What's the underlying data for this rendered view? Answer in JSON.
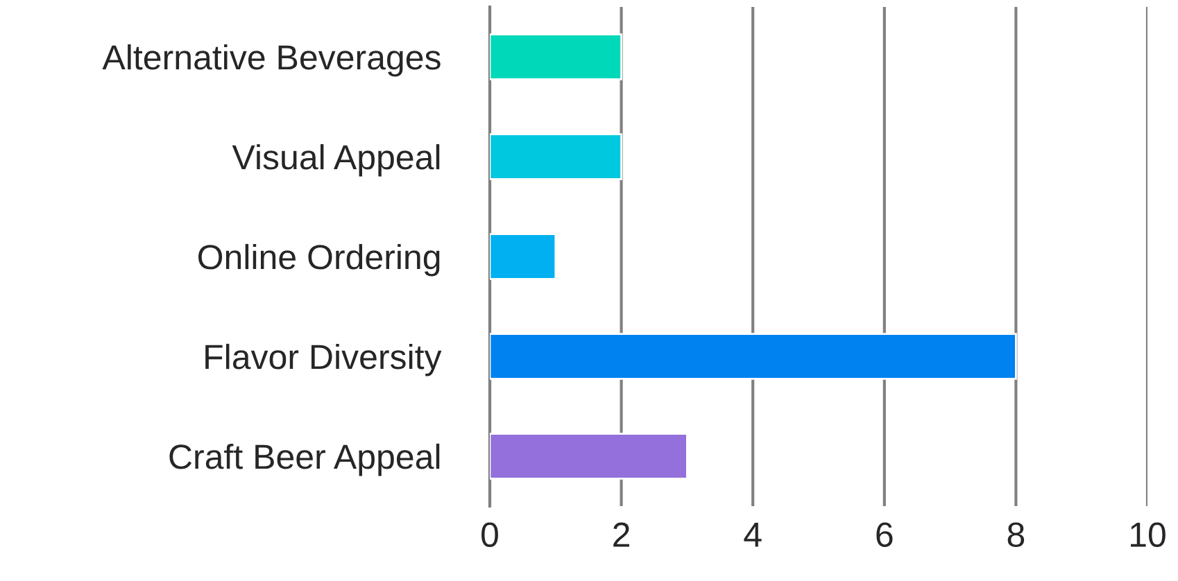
{
  "chart_data": {
    "type": "bar",
    "orientation": "horizontal",
    "categories": [
      "Alternative Beverages",
      "Visual Appeal",
      "Online Ordering",
      "Flavor Diversity",
      "Craft Beer Appeal"
    ],
    "values": [
      2,
      2,
      1,
      8,
      3
    ],
    "colors": [
      "#00d9b9",
      "#00c8df",
      "#00b0f0",
      "#0082f0",
      "#9370db"
    ],
    "xlim": [
      0,
      10
    ],
    "xticks": [
      0,
      2,
      4,
      6,
      8,
      10
    ],
    "grid": "x"
  }
}
